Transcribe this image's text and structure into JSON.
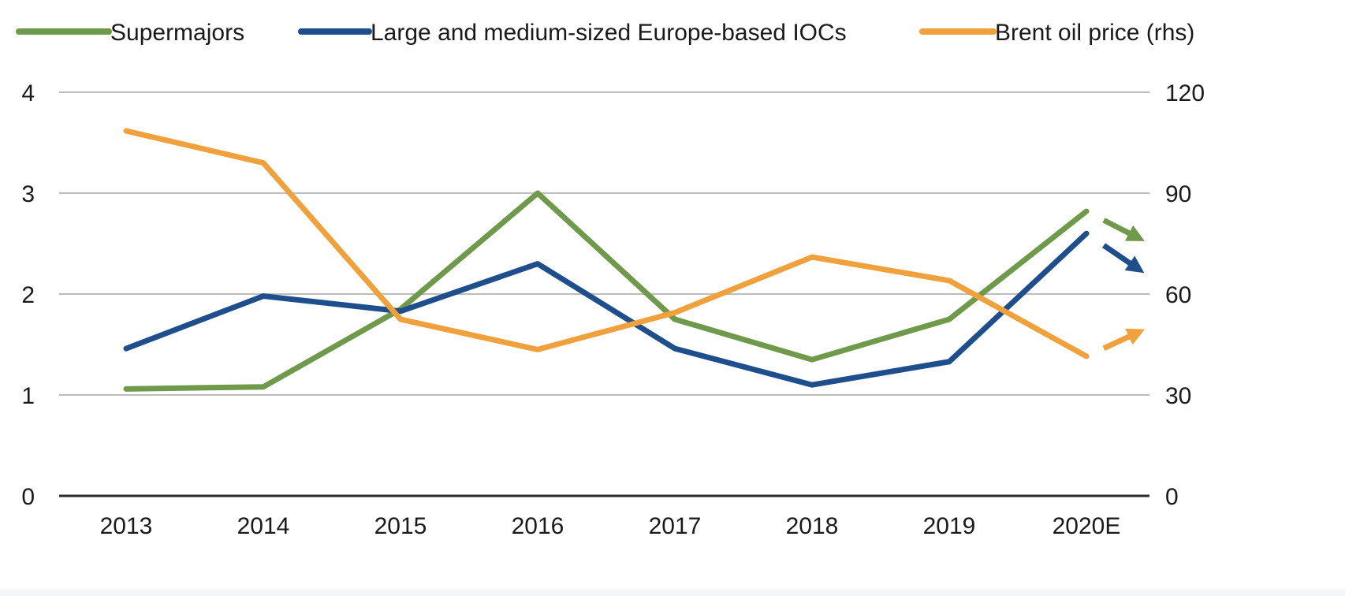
{
  "chart_data": {
    "type": "line",
    "title": "",
    "categories": [
      "2013",
      "2014",
      "2015",
      "2016",
      "2017",
      "2018",
      "2019",
      "2020E"
    ],
    "xlabel": "",
    "ylabel": "",
    "y_left": {
      "lim": [
        0,
        4
      ],
      "ticks": [
        "0",
        "1",
        "2",
        "3",
        "4"
      ],
      "tick_values": [
        0,
        1,
        2,
        3,
        4
      ]
    },
    "y_right": {
      "lim": [
        0,
        120
      ],
      "ticks": [
        "0",
        "30",
        "60",
        "90",
        "120"
      ],
      "tick_values": [
        0,
        30,
        60,
        90,
        120
      ]
    },
    "grid": true,
    "legend_position": "top",
    "series": [
      {
        "name": "Supermajors",
        "axis": "left",
        "color": "#6f9a4b",
        "values": [
          1.06,
          1.08,
          1.85,
          3.0,
          1.75,
          1.35,
          1.75,
          2.82
        ],
        "projection": {
          "from": 2.82,
          "to": 2.58
        }
      },
      {
        "name": "Large and medium-sized Europe-based IOCs",
        "axis": "left",
        "color": "#1f4e8c",
        "values": [
          1.46,
          1.98,
          1.83,
          2.3,
          1.46,
          1.1,
          1.33,
          2.6
        ],
        "projection": {
          "from": 2.6,
          "to": 2.28
        }
      },
      {
        "name": "Brent oil price (rhs)",
        "axis": "right",
        "color": "#f0a13c",
        "values": [
          108.5,
          99,
          52.5,
          43.5,
          54.5,
          71,
          64,
          41.5
        ],
        "projection": {
          "from": 41.5,
          "to": 48
        }
      }
    ]
  }
}
